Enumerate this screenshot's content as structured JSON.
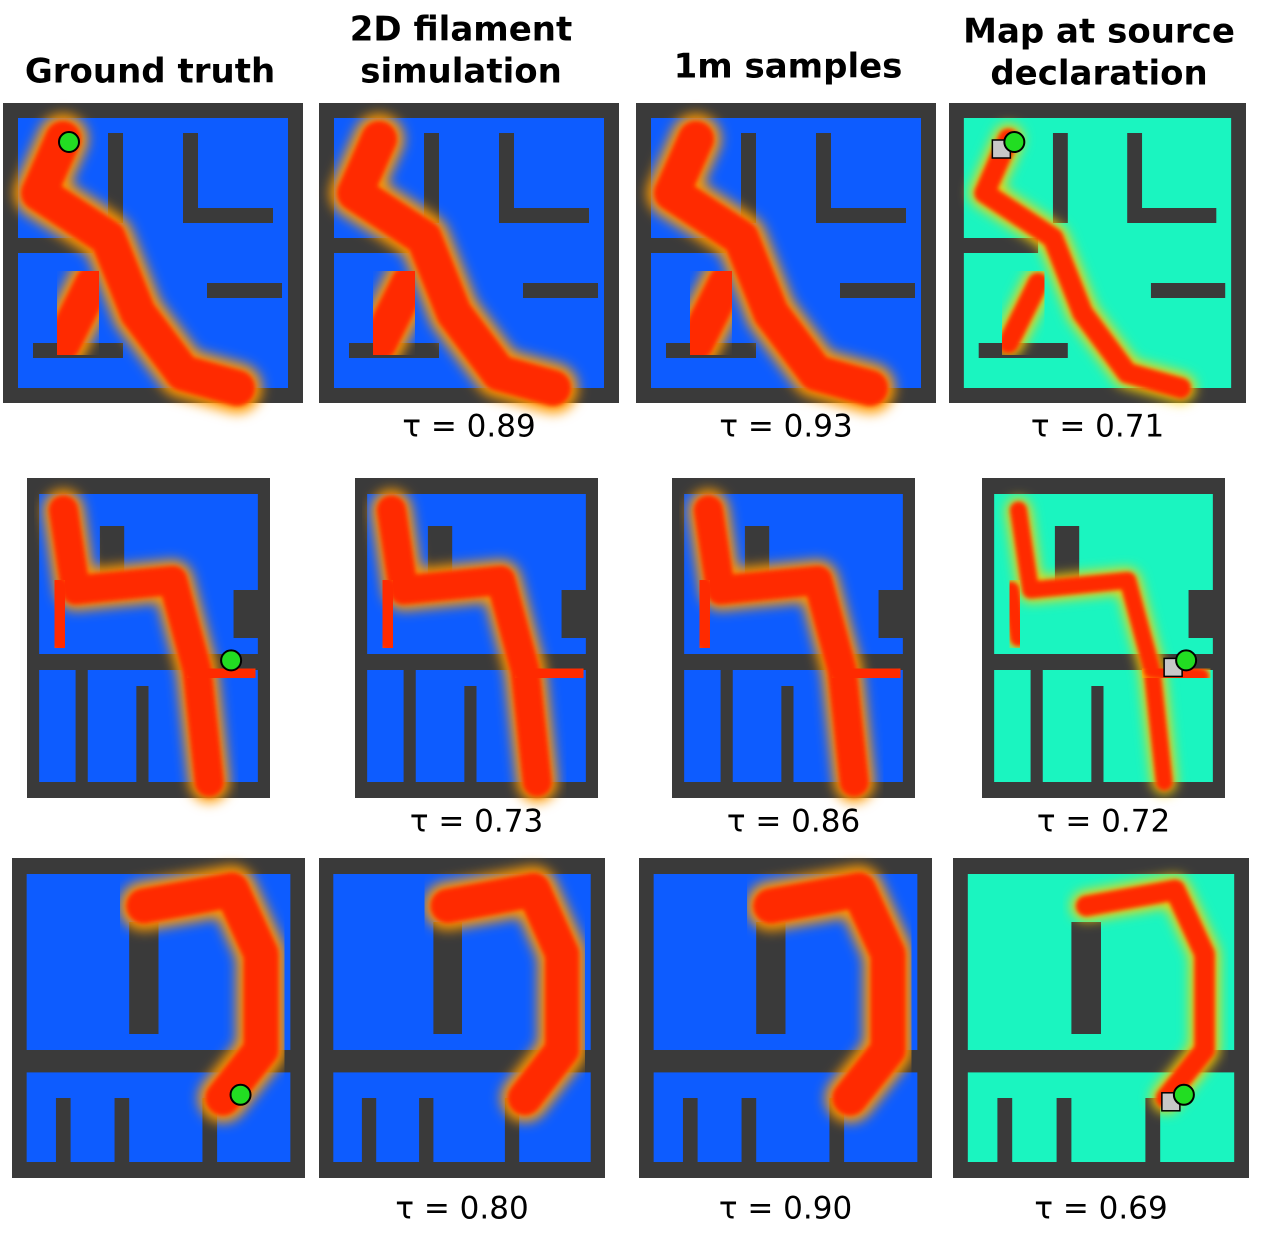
{
  "header": {
    "columns": [
      {
        "lines": [
          "Ground truth"
        ]
      },
      {
        "lines": [
          "2D filament",
          "simulation"
        ]
      },
      {
        "lines": [
          "1m samples"
        ]
      },
      {
        "lines": [
          "Map at source",
          "declaration"
        ]
      }
    ]
  },
  "rows": [
    {
      "tau": [
        "τ = 0.89",
        "τ = 0.93",
        "τ = 0.71"
      ]
    },
    {
      "tau": [
        "τ = 0.73",
        "τ = 0.86",
        "τ = 0.72"
      ]
    },
    {
      "tau": [
        "τ = 0.80",
        "τ = 0.90",
        "τ = 0.69"
      ]
    }
  ]
}
